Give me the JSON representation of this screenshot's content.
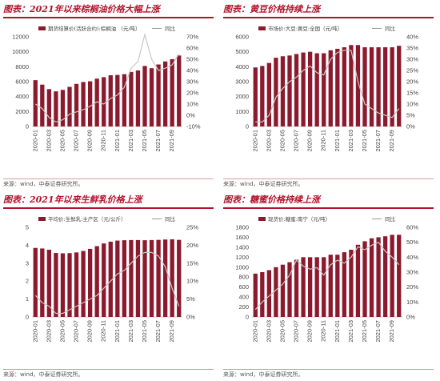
{
  "source_label": "来源：wind，中泰证券研究所。",
  "colors": {
    "bar": "#8c1a2e",
    "line": "#c7c7c7",
    "title": "#b0142b"
  },
  "chart_data": [
    {
      "type": "bar",
      "title": "图表：2021年以来棕榈油价格大幅上涨",
      "bar_series_name": "期货结算价(活跃合约):棕榈油 （元/吨）",
      "line_series_name": "同比",
      "categories": [
        "2020-01",
        "2020-02",
        "2020-03",
        "2020-04",
        "2020-05",
        "2020-06",
        "2020-07",
        "2020-08",
        "2020-09",
        "2020-10",
        "2020-11",
        "2020-12",
        "2021-01",
        "2021-02",
        "2021-03",
        "2021-04",
        "2021-05",
        "2021-06",
        "2021-07",
        "2021-08",
        "2021-09",
        "2021-10"
      ],
      "x_tick_labels": [
        "2020-01",
        "2020-03",
        "2020-05",
        "2020-07",
        "2020-09",
        "2020-11",
        "2021-01",
        "2021-03",
        "2021-05",
        "2021-07",
        "2021-09"
      ],
      "values": [
        6200,
        5600,
        5000,
        4700,
        4900,
        5300,
        5700,
        5950,
        6050,
        6400,
        6600,
        6850,
        6900,
        7000,
        7300,
        7500,
        8100,
        7800,
        8300,
        8700,
        9000,
        9500
      ],
      "yoy": [
        0.1,
        0.06,
        -0.02,
        -0.06,
        -0.04,
        0.01,
        0.03,
        0.05,
        0.08,
        0.12,
        0.1,
        0.15,
        0.18,
        0.25,
        0.42,
        0.48,
        0.72,
        0.5,
        0.4,
        0.42,
        0.45,
        0.55
      ],
      "ylim_left": [
        0,
        12000
      ],
      "yticks_left": [
        0,
        2000,
        4000,
        6000,
        8000,
        10000,
        12000
      ],
      "ylim_right": [
        -0.1,
        0.7
      ],
      "yticks_right": [
        "-10%",
        "0%",
        "10%",
        "20%",
        "30%",
        "40%",
        "50%",
        "60%",
        "70%"
      ],
      "yticks_right_values": [
        -0.1,
        0,
        0.1,
        0.2,
        0.3,
        0.4,
        0.5,
        0.6,
        0.7
      ]
    },
    {
      "type": "bar",
      "title": "图表：黄豆价格持续上涨",
      "bar_series_name": "市场价:大豆:黄豆:全国（元/吨）",
      "line_series_name": "同比",
      "categories": [
        "2020-01",
        "2020-02",
        "2020-03",
        "2020-04",
        "2020-05",
        "2020-06",
        "2020-07",
        "2020-08",
        "2020-09",
        "2020-10",
        "2020-11",
        "2020-12",
        "2021-01",
        "2021-02",
        "2021-03",
        "2021-04",
        "2021-05",
        "2021-06",
        "2021-07",
        "2021-08",
        "2021-09",
        "2021-10"
      ],
      "x_tick_labels": [
        "2020-01",
        "2020-03",
        "2020-05",
        "2020-07",
        "2020-09",
        "2020-11",
        "2021-01",
        "2021-03",
        "2021-05",
        "2021-07",
        "2021-09"
      ],
      "values": [
        3950,
        4050,
        4250,
        4600,
        4700,
        4750,
        4850,
        4950,
        5000,
        4900,
        4900,
        5100,
        5200,
        5300,
        5450,
        5450,
        5300,
        5300,
        5300,
        5300,
        5300,
        5400
      ],
      "yoy": [
        0.02,
        0.02,
        0.05,
        0.13,
        0.17,
        0.2,
        0.22,
        0.25,
        0.27,
        0.24,
        0.23,
        0.3,
        0.33,
        0.34,
        0.34,
        0.2,
        0.1,
        0.08,
        0.06,
        0.05,
        0.04,
        0.08
      ],
      "ylim_left": [
        0,
        6000
      ],
      "yticks_left": [
        0,
        1000,
        2000,
        3000,
        4000,
        5000,
        6000
      ],
      "ylim_right": [
        0,
        0.4
      ],
      "yticks_right": [
        "0%",
        "5%",
        "10%",
        "15%",
        "20%",
        "25%",
        "30%",
        "35%",
        "40%"
      ],
      "yticks_right_values": [
        0,
        0.05,
        0.1,
        0.15,
        0.2,
        0.25,
        0.3,
        0.35,
        0.4
      ]
    },
    {
      "type": "bar",
      "title": "图表：2021年以来生鲜乳价格上涨",
      "bar_series_name": "平均价:生鲜乳:主产区（元/公斤）",
      "line_series_name": "同比",
      "categories": [
        "2020-01",
        "2020-02",
        "2020-03",
        "2020-04",
        "2020-05",
        "2020-06",
        "2020-07",
        "2020-08",
        "2020-09",
        "2020-10",
        "2020-11",
        "2020-12",
        "2021-01",
        "2021-02",
        "2021-03",
        "2021-04",
        "2021-05",
        "2021-06",
        "2021-07",
        "2021-08",
        "2021-09",
        "2021-10"
      ],
      "x_tick_labels": [
        "2020-01",
        "2020-03",
        "2020-05",
        "2020-07",
        "2020-09",
        "2020-11",
        "2021-01",
        "2021-03",
        "2021-05",
        "2021-07",
        "2021-09"
      ],
      "values": [
        3.85,
        3.82,
        3.75,
        3.57,
        3.55,
        3.56,
        3.6,
        3.68,
        3.8,
        3.95,
        4.1,
        4.2,
        4.26,
        4.28,
        4.29,
        4.29,
        4.28,
        4.29,
        4.3,
        4.32,
        4.33,
        4.3
      ],
      "yoy": [
        0.06,
        0.04,
        0.03,
        0.01,
        0.01,
        0.02,
        0.03,
        0.04,
        0.05,
        0.06,
        0.08,
        0.1,
        0.12,
        0.13,
        0.15,
        0.17,
        0.18,
        0.18,
        0.17,
        0.14,
        0.08,
        0.03
      ],
      "ylim_left": [
        0,
        5
      ],
      "yticks_left": [
        0,
        1,
        2,
        3,
        4,
        5
      ],
      "ylim_right": [
        0,
        0.25
      ],
      "yticks_right": [
        "0%",
        "5%",
        "10%",
        "15%",
        "20%",
        "25%"
      ],
      "yticks_right_values": [
        0,
        0.05,
        0.1,
        0.15,
        0.2,
        0.25
      ]
    },
    {
      "type": "bar",
      "title": "图表：糖蜜价格持续上涨",
      "bar_series_name": "现货价:糖蜜:南宁（元/吨）",
      "line_series_name": "同比",
      "categories": [
        "2020-01",
        "2020-02",
        "2020-03",
        "2020-04",
        "2020-05",
        "2020-06",
        "2020-07",
        "2020-08",
        "2020-09",
        "2020-10",
        "2020-11",
        "2020-12",
        "2021-01",
        "2021-02",
        "2021-03",
        "2021-04",
        "2021-05",
        "2021-06",
        "2021-07",
        "2021-08",
        "2021-09",
        "2021-10"
      ],
      "x_tick_labels": [
        "2020-01",
        "2020-03",
        "2020-05",
        "2020-07",
        "2020-09",
        "2020-11",
        "2021-01",
        "2021-03",
        "2021-05",
        "2021-07",
        "2021-09"
      ],
      "values": [
        870,
        900,
        940,
        1000,
        1050,
        1100,
        1150,
        1200,
        1200,
        1200,
        1200,
        1250,
        1250,
        1300,
        1350,
        1450,
        1520,
        1580,
        1600,
        1620,
        1650,
        1650
      ],
      "yoy": [
        0.05,
        0.1,
        0.14,
        0.18,
        0.22,
        0.28,
        0.38,
        0.34,
        0.32,
        0.33,
        0.28,
        0.35,
        0.38,
        0.36,
        0.4,
        0.47,
        0.45,
        0.48,
        0.5,
        0.44,
        0.4,
        0.35
      ],
      "ylim_left": [
        0,
        1800
      ],
      "yticks_left": [
        0,
        200,
        400,
        600,
        800,
        1000,
        1200,
        1400,
        1600,
        1800
      ],
      "ylim_right": [
        0,
        0.6
      ],
      "yticks_right": [
        "0%",
        "10%",
        "20%",
        "30%",
        "40%",
        "50%",
        "60%"
      ],
      "yticks_right_values": [
        0,
        0.1,
        0.2,
        0.3,
        0.4,
        0.5,
        0.6
      ]
    }
  ]
}
